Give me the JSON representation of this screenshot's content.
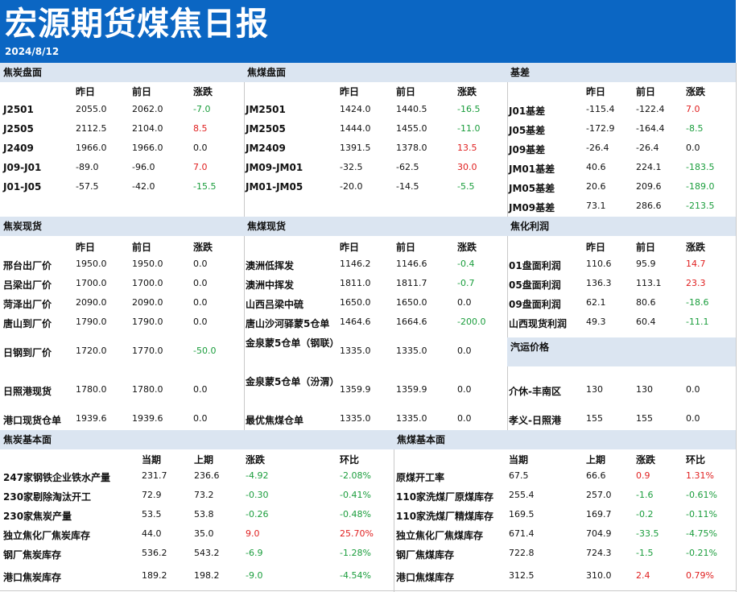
{
  "title": "宏源期货煤焦日报",
  "date": "2024/8/12",
  "colors": {
    "header_bg": "#0b66c3",
    "section_bg": "#dbe5f1",
    "up": "#e02020",
    "down": "#1a9d3c"
  },
  "coking_coal_futures": {
    "title": "焦炭盘面",
    "headers": [
      "昨日",
      "前日",
      "涨跌"
    ],
    "rows": [
      {
        "label": "J2501",
        "v1": "2055.0",
        "v2": "2062.0",
        "chg": "-7.0",
        "dir": "down"
      },
      {
        "label": "J2505",
        "v1": "2112.5",
        "v2": "2104.0",
        "chg": "8.5",
        "dir": "up"
      },
      {
        "label": "J2409",
        "v1": "1966.0",
        "v2": "1966.0",
        "chg": "0.0",
        "dir": "flat"
      },
      {
        "label": "J09-J01",
        "v1": "-89.0",
        "v2": "-96.0",
        "chg": "7.0",
        "dir": "up"
      },
      {
        "label": "J01-J05",
        "v1": "-57.5",
        "v2": "-42.0",
        "chg": "-15.5",
        "dir": "down"
      }
    ]
  },
  "coal_futures": {
    "title": "焦煤盘面",
    "headers": [
      "昨日",
      "前日",
      "涨跌"
    ],
    "rows": [
      {
        "label": "JM2501",
        "v1": "1424.0",
        "v2": "1440.5",
        "chg": "-16.5",
        "dir": "down"
      },
      {
        "label": "JM2505",
        "v1": "1444.0",
        "v2": "1455.0",
        "chg": "-11.0",
        "dir": "down"
      },
      {
        "label": "JM2409",
        "v1": "1391.5",
        "v2": "1378.0",
        "chg": "13.5",
        "dir": "up"
      },
      {
        "label": "JM09-JM01",
        "v1": "-32.5",
        "v2": "-62.5",
        "chg": "30.0",
        "dir": "up"
      },
      {
        "label": "JM01-JM05",
        "v1": "-20.0",
        "v2": "-14.5",
        "chg": "-5.5",
        "dir": "down"
      }
    ]
  },
  "basis": {
    "title": "基差",
    "headers": [
      "昨日",
      "前日",
      "涨跌"
    ],
    "rows": [
      {
        "label": "J01基差",
        "v1": "-115.4",
        "v2": "-122.4",
        "chg": "7.0",
        "dir": "up"
      },
      {
        "label": "J05基差",
        "v1": "-172.9",
        "v2": "-164.4",
        "chg": "-8.5",
        "dir": "down"
      },
      {
        "label": "J09基差",
        "v1": "-26.4",
        "v2": "-26.4",
        "chg": "0.0",
        "dir": "flat"
      },
      {
        "label": "JM01基差",
        "v1": "40.6",
        "v2": "224.1",
        "chg": "-183.5",
        "dir": "down"
      },
      {
        "label": "JM05基差",
        "v1": "20.6",
        "v2": "209.6",
        "chg": "-189.0",
        "dir": "down"
      },
      {
        "label": "JM09基差",
        "v1": "73.1",
        "v2": "286.6",
        "chg": "-213.5",
        "dir": "down"
      }
    ]
  },
  "coke_spot": {
    "title": "焦炭现货",
    "headers": [
      "昨日",
      "前日",
      "涨跌"
    ],
    "rows": [
      {
        "label": "邢台出厂价",
        "v1": "1950.0",
        "v2": "1950.0",
        "chg": "0.0",
        "dir": "flat"
      },
      {
        "label": "吕梁出厂价",
        "v1": "1700.0",
        "v2": "1700.0",
        "chg": "0.0",
        "dir": "flat"
      },
      {
        "label": "菏泽出厂价",
        "v1": "2090.0",
        "v2": "2090.0",
        "chg": "0.0",
        "dir": "flat"
      },
      {
        "label": "唐山到厂价",
        "v1": "1790.0",
        "v2": "1790.0",
        "chg": "0.0",
        "dir": "flat"
      },
      {
        "label": "日钢到厂价",
        "v1": "1720.0",
        "v2": "1770.0",
        "chg": "-50.0",
        "dir": "down"
      },
      {
        "label": "日照港现货",
        "v1": "1780.0",
        "v2": "1780.0",
        "chg": "0.0",
        "dir": "flat"
      },
      {
        "label": "港口现货仓单",
        "v1": "1939.6",
        "v2": "1939.6",
        "chg": "0.0",
        "dir": "flat"
      }
    ]
  },
  "coal_spot": {
    "title": "焦煤现货",
    "headers": [
      "昨日",
      "前日",
      "涨跌"
    ],
    "rows": [
      {
        "label": "澳洲低挥发",
        "v1": "1146.2",
        "v2": "1146.6",
        "chg": "-0.4",
        "dir": "down"
      },
      {
        "label": "澳洲中挥发",
        "v1": "1811.0",
        "v2": "1811.7",
        "chg": "-0.7",
        "dir": "down"
      },
      {
        "label": "山西吕梁中硫",
        "v1": "1650.0",
        "v2": "1650.0",
        "chg": "0.0",
        "dir": "flat"
      },
      {
        "label": "唐山沙河驿蒙5仓单",
        "v1": "1464.6",
        "v2": "1664.6",
        "chg": "-200.0",
        "dir": "down"
      },
      {
        "label": "金泉蒙5仓单（钢联）",
        "v1": "1335.0",
        "v2": "1335.0",
        "chg": "0.0",
        "dir": "flat"
      },
      {
        "label": "金泉蒙5仓单（汾渭）",
        "v1": "1359.9",
        "v2": "1359.9",
        "chg": "0.0",
        "dir": "flat"
      },
      {
        "label": "最优焦煤仓单",
        "v1": "1335.0",
        "v2": "1335.0",
        "chg": "0.0",
        "dir": "flat"
      }
    ]
  },
  "coking_profit": {
    "title": "焦化利润",
    "headers": [
      "昨日",
      "前日",
      "涨跌"
    ],
    "rows": [
      {
        "label": "01盘面利润",
        "v1": "110.6",
        "v2": "95.9",
        "chg": "14.7",
        "dir": "up"
      },
      {
        "label": "05盘面利润",
        "v1": "136.3",
        "v2": "113.1",
        "chg": "23.3",
        "dir": "up"
      },
      {
        "label": "09盘面利润",
        "v1": "62.1",
        "v2": "80.6",
        "chg": "-18.6",
        "dir": "down"
      },
      {
        "label": "山西现货利润",
        "v1": "49.3",
        "v2": "60.4",
        "chg": "-11.1",
        "dir": "down"
      }
    ]
  },
  "freight": {
    "title": "汽运价格",
    "rows": [
      {
        "label": "介休-丰南区",
        "v1": "130",
        "v2": "130",
        "chg": "0.0",
        "dir": "flat"
      },
      {
        "label": "孝义-日照港",
        "v1": "155",
        "v2": "155",
        "chg": "0.0",
        "dir": "flat"
      }
    ]
  },
  "coke_fundamentals": {
    "title": "焦炭基本面",
    "headers": [
      "当期",
      "上期",
      "涨跌",
      "环比"
    ],
    "rows": [
      {
        "label": "247家钢铁企业铁水产量",
        "v1": "231.7",
        "v2": "236.6",
        "chg": "-4.92",
        "pct": "-2.08%",
        "dir": "down"
      },
      {
        "label": "230家剔除淘汰开工",
        "v1": "72.9",
        "v2": "73.2",
        "chg": "-0.30",
        "pct": "-0.41%",
        "dir": "down"
      },
      {
        "label": "230家焦炭产量",
        "v1": "53.5",
        "v2": "53.8",
        "chg": "-0.26",
        "pct": "-0.48%",
        "dir": "down"
      },
      {
        "label": "独立焦化厂焦炭库存",
        "v1": "44.0",
        "v2": "35.0",
        "chg": "9.0",
        "pct": "25.70%",
        "dir": "up"
      },
      {
        "label": "钢厂焦炭库存",
        "v1": "536.2",
        "v2": "543.2",
        "chg": "-6.9",
        "pct": "-1.28%",
        "dir": "down"
      },
      {
        "label": "港口焦炭库存",
        "v1": "189.2",
        "v2": "198.2",
        "chg": "-9.0",
        "pct": "-4.54%",
        "dir": "down"
      }
    ]
  },
  "coal_fundamentals": {
    "title": "焦煤基本面",
    "headers": [
      "当期",
      "上期",
      "涨跌",
      "环比"
    ],
    "rows": [
      {
        "label": "原煤开工率",
        "v1": "67.5",
        "v2": "66.6",
        "chg": "0.9",
        "pct": "1.31%",
        "dir": "up"
      },
      {
        "label": "110家洗煤厂原煤库存",
        "v1": "255.4",
        "v2": "257.0",
        "chg": "-1.6",
        "pct": "-0.61%",
        "dir": "down"
      },
      {
        "label": "110家洗煤厂精煤库存",
        "v1": "169.5",
        "v2": "169.7",
        "chg": "-0.2",
        "pct": "-0.11%",
        "dir": "down"
      },
      {
        "label": "独立焦化厂焦煤库存",
        "v1": "671.4",
        "v2": "704.9",
        "chg": "-33.5",
        "pct": "-4.75%",
        "dir": "down"
      },
      {
        "label": "钢厂焦煤库存",
        "v1": "722.8",
        "v2": "724.3",
        "chg": "-1.5",
        "pct": "-0.21%",
        "dir": "down"
      },
      {
        "label": "港口焦煤库存",
        "v1": "312.5",
        "v2": "310.0",
        "chg": "2.4",
        "pct": "0.79%",
        "dir": "up"
      }
    ]
  }
}
